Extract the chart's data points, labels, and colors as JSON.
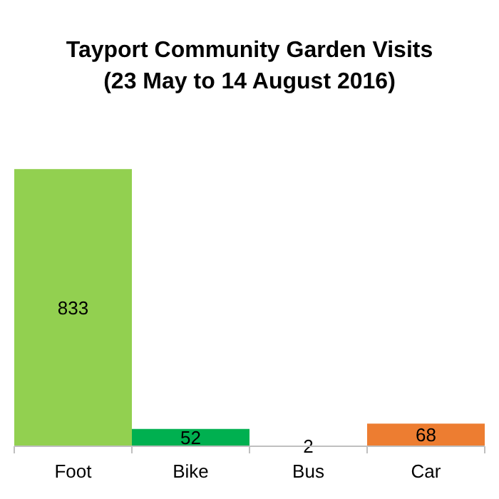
{
  "chart_data": {
    "type": "bar",
    "title": "Tayport Community Garden Visits\n(23 May to 14 August 2016)",
    "categories": [
      "Foot",
      "Bike",
      "Bus",
      "Car"
    ],
    "values": [
      833,
      52,
      2,
      68
    ],
    "colors": [
      "#92d050",
      "#00b050",
      "#4472c4",
      "#ed7d31"
    ],
    "data_labels": true
  }
}
